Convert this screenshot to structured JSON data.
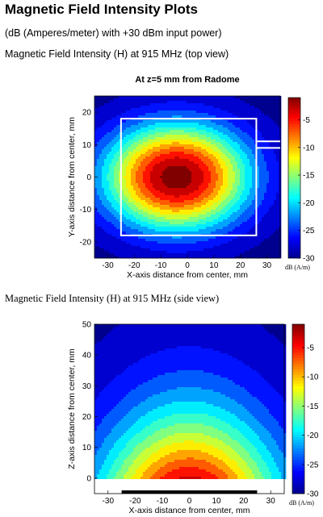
{
  "page": {
    "title": "Magnetic Field Intensity Plots",
    "subtitle": "(dB (Amperes/meter) with +30 dBm input power)",
    "caption_top": "Magnetic Field Intensity (H) at 915 MHz (top view)",
    "caption_side": "Magnetic Field Intensity (H) at 915 MHz (side view)"
  },
  "colormap": [
    "#00008f",
    "#0000ff",
    "#0080ff",
    "#00ffff",
    "#80ff80",
    "#ffff00",
    "#ff8000",
    "#ff0000",
    "#800000"
  ],
  "chart_data": [
    {
      "type": "heatmap",
      "view": "top",
      "title": "At z=5 mm from Radome",
      "xlabel": "X-axis distance from center, mm",
      "ylabel": "Y-axis distance from center, mm",
      "xlim": [
        -35,
        35
      ],
      "ylim": [
        -25,
        25
      ],
      "xticks": [
        -30,
        -20,
        -10,
        0,
        10,
        20,
        30
      ],
      "yticks": [
        -20,
        -10,
        0,
        10,
        20
      ],
      "xtick_labels": [
        "-30",
        "-20",
        "-10",
        "0",
        "10",
        "20",
        "30"
      ],
      "ytick_labels": [
        "-20",
        "-10",
        "0",
        "10",
        "20"
      ],
      "peak_center": [
        -4,
        0
      ],
      "max_db": -1,
      "min_db": -30,
      "colorbar": {
        "range": [
          -30,
          -1
        ],
        "ticks": [
          -5,
          -10,
          -15,
          -20,
          -25,
          -30
        ],
        "tick_labels": [
          "-5",
          "-10",
          "-15",
          "-20",
          "-25",
          "-30"
        ],
        "label": "dB (A/m)"
      },
      "overlay_rectangle": {
        "x": [
          -25,
          26
        ],
        "y": [
          -18,
          18
        ]
      },
      "overlay_lines": [
        {
          "y": 11,
          "x": [
            26,
            35
          ]
        },
        {
          "y": 9,
          "x": [
            26,
            35
          ]
        }
      ]
    },
    {
      "type": "heatmap",
      "view": "side",
      "title": "",
      "xlabel": "X-axis distance from center, mm",
      "ylabel": "Z-axis distance from center, mm",
      "xlim": [
        -35,
        35
      ],
      "ylim": [
        -5,
        50
      ],
      "xticks": [
        -30,
        -20,
        -10,
        0,
        10,
        20,
        30
      ],
      "yticks": [
        0,
        10,
        20,
        30,
        40,
        50
      ],
      "xtick_labels": [
        "-30",
        "-20",
        "-10",
        "0",
        "10",
        "20",
        "30"
      ],
      "ytick_labels": [
        "0",
        "10",
        "20",
        "30",
        "40",
        "50"
      ],
      "source_bar": {
        "x": [
          -25,
          25
        ],
        "z": -5
      },
      "max_db": -1,
      "min_db": -30,
      "colorbar": {
        "range": [
          -30,
          -1
        ],
        "ticks": [
          -5,
          -10,
          -15,
          -20,
          -25,
          -30
        ],
        "tick_labels": [
          "-5",
          "-10",
          "-15",
          "-20",
          "-25",
          "-30"
        ],
        "label": "dB (A/m)"
      }
    }
  ]
}
